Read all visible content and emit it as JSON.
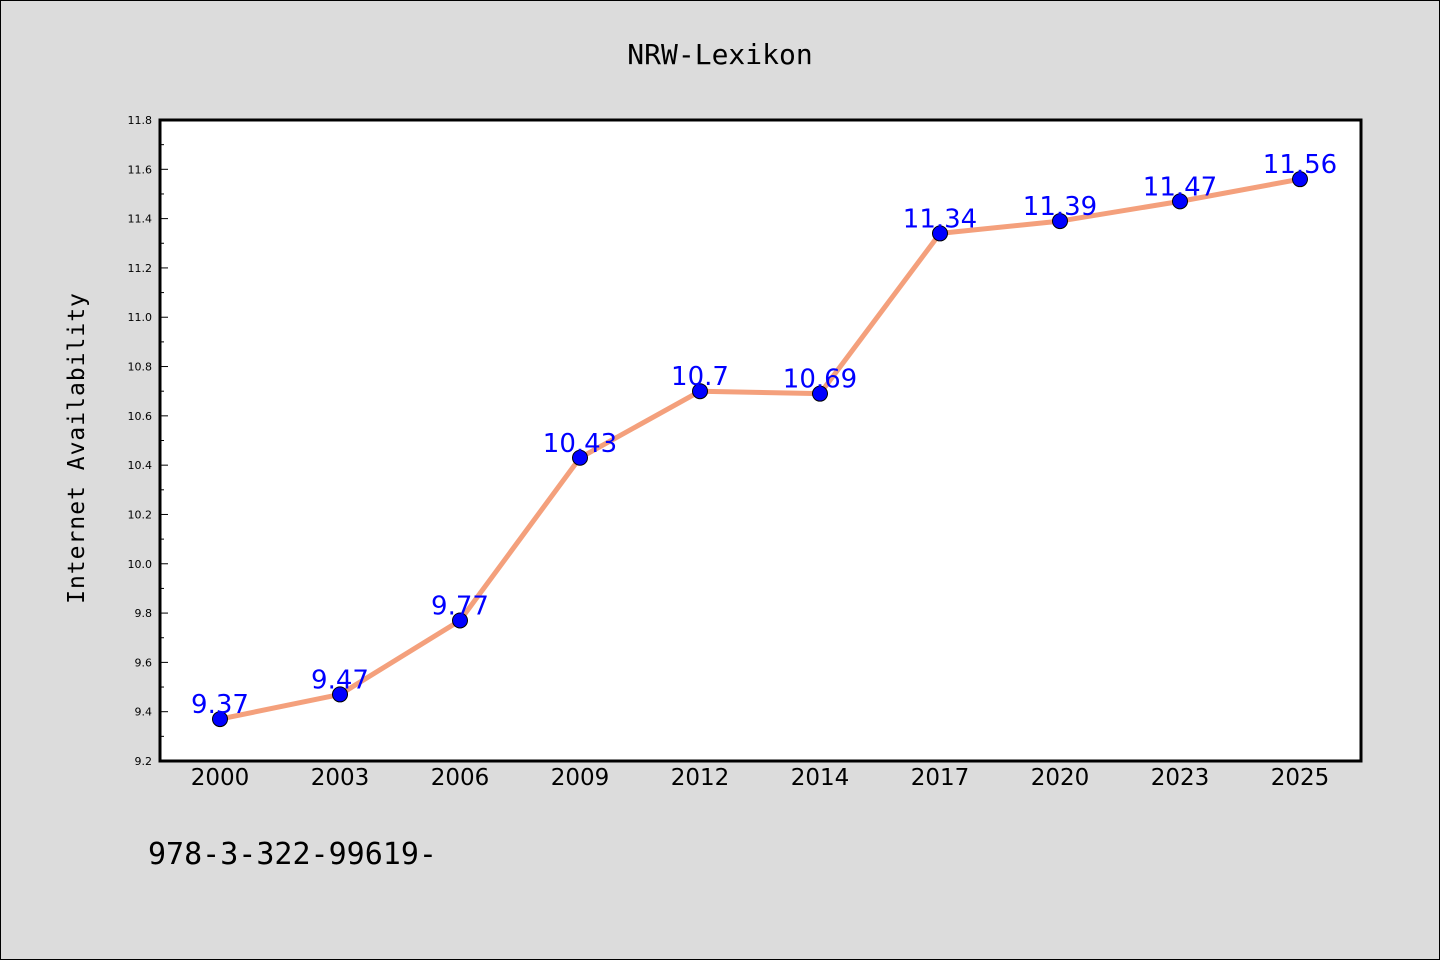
{
  "footer_text": "978-3-322-99619-",
  "chart_data": {
    "type": "line",
    "title": "NRW-Lexikon",
    "xlabel": "",
    "ylabel": "Internet Availability",
    "categories": [
      "2000",
      "2003",
      "2006",
      "2009",
      "2012",
      "2014",
      "2017",
      "2020",
      "2023",
      "2025"
    ],
    "series": [
      {
        "values": [
          9.37,
          9.47,
          9.77,
          10.43,
          10.7,
          10.69,
          11.34,
          11.39,
          11.47,
          11.56
        ],
        "data_labels": [
          "9.37",
          "9.47",
          "9.77",
          "10.43",
          "10.7",
          "10.69",
          "11.34",
          "11.39",
          "11.47",
          "11.56"
        ],
        "line_color": "#f4a07c",
        "marker_color": "#0000ff"
      }
    ],
    "ylim": [
      9.2,
      11.8
    ],
    "yticks": [
      "9.2",
      "9.4",
      "9.6",
      "9.8",
      "10.0",
      "10.2",
      "10.4",
      "10.6",
      "10.8",
      "11.0",
      "11.2",
      "11.4",
      "11.6",
      "11.8"
    ],
    "grid": false,
    "legend": "none"
  }
}
